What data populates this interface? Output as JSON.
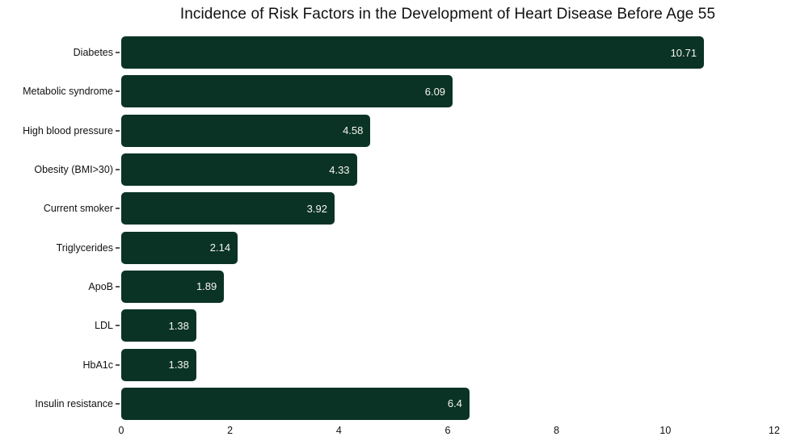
{
  "chart_data": {
    "type": "bar",
    "orientation": "horizontal",
    "title": "Incidence of Risk Factors in the Development of Heart Disease Before Age 55",
    "xlabel": "",
    "ylabel": "",
    "categories": [
      "Diabetes",
      "Metabolic syndrome",
      "High blood pressure",
      "Obesity (BMI>30)",
      "Current smoker",
      "Triglycerides",
      "ApoB",
      "LDL",
      "HbA1c",
      "Insulin resistance"
    ],
    "values": [
      10.71,
      6.09,
      4.58,
      4.33,
      3.92,
      2.14,
      1.89,
      1.38,
      1.38,
      6.4
    ],
    "value_labels": [
      "10.71",
      "6.09",
      "4.58",
      "4.33",
      "3.92",
      "2.14",
      "1.89",
      "1.38",
      "1.38",
      "6.4"
    ],
    "xlim": [
      0,
      12
    ],
    "x_ticks": [
      "0",
      "2",
      "4",
      "6",
      "8",
      "10",
      "12"
    ],
    "grid": false,
    "legend": false,
    "colors": {
      "bar": "#0a3325",
      "value_text": "#f5f5f0",
      "label_text": "#111111",
      "tick_text": "#111111",
      "background": "#ffffff"
    }
  }
}
